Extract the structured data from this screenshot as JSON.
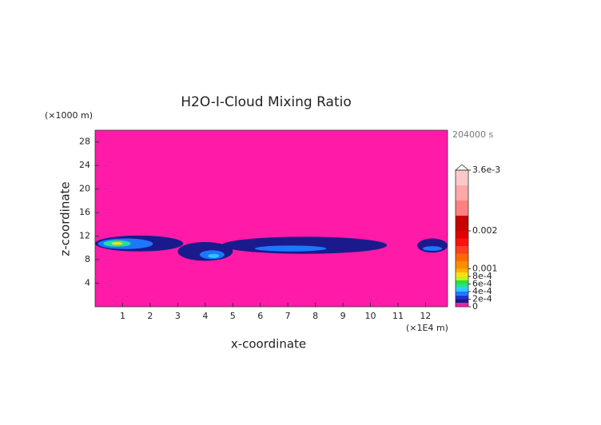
{
  "chart_data": {
    "type": "contour",
    "title": "H2O-I-Cloud Mixing Ratio",
    "time_label": "204000 s",
    "xlabel": "x-coordinate",
    "xunit": "(×1E4 m)",
    "ylabel": "z-coordinate",
    "yunit": "(×1000 m)",
    "xlim": [
      0,
      12.8
    ],
    "xticks": [
      1,
      2,
      3,
      4,
      5,
      6,
      7,
      8,
      9,
      10,
      11,
      12
    ],
    "ylim": [
      0,
      30
    ],
    "yticks": [
      4,
      8,
      12,
      16,
      20,
      24,
      28
    ],
    "background_color": "#ff1aa8",
    "colorbar": {
      "levels": [
        0,
        0.0001,
        0.0002,
        0.0003,
        0.0004,
        0.0005,
        0.0006,
        0.0007,
        0.0008,
        0.0009,
        0.001,
        0.0012,
        0.0014,
        0.0016,
        0.0018,
        0.002,
        0.0024,
        0.0028,
        0.0032,
        0.0036
      ],
      "colors": [
        "#ff1aa8",
        "#1a1a8c",
        "#2030d8",
        "#1c78ff",
        "#28c8ff",
        "#20e0a0",
        "#30e030",
        "#c8f020",
        "#ffe010",
        "#ffb000",
        "#ff8c00",
        "#ff6a00",
        "#ff4020",
        "#ff1010",
        "#e00000",
        "#c80000",
        "#ff8080",
        "#ffa8a8",
        "#ffc8c8"
      ],
      "ticks": [
        0,
        {
          "value": 0.0002,
          "label": "2e-4"
        },
        {
          "value": 0.0004,
          "label": "4e-4"
        },
        {
          "value": 0.0006,
          "label": "6e-4"
        },
        {
          "value": 0.0008,
          "label": "8e-4"
        },
        0.001,
        0.002,
        {
          "value": 0.0036,
          "label": "3.6e-3"
        }
      ]
    },
    "regions": [
      {
        "x": [
          0,
          3.2
        ],
        "z": [
          9.4,
          12.1
        ],
        "value": 0.0001
      },
      {
        "x": [
          0.1,
          2.1
        ],
        "z": [
          9.8,
          11.6
        ],
        "value": 0.0003
      },
      {
        "x": [
          0.3,
          1.3
        ],
        "z": [
          10.2,
          11.3
        ],
        "value": 0.0005
      },
      {
        "x": [
          0.6,
          1.0
        ],
        "z": [
          10.5,
          11.0
        ],
        "value": 0.0008
      },
      {
        "x": [
          3.0,
          5.0
        ],
        "z": [
          7.8,
          11.0
        ],
        "value": 0.0001
      },
      {
        "x": [
          3.8,
          4.7
        ],
        "z": [
          8.1,
          9.6
        ],
        "value": 0.0003
      },
      {
        "x": [
          4.1,
          4.5
        ],
        "z": [
          8.3,
          9.0
        ],
        "value": 0.0004
      },
      {
        "x": [
          4.6,
          10.6
        ],
        "z": [
          9.0,
          11.9
        ],
        "value": 0.0001
      },
      {
        "x": [
          5.8,
          8.4
        ],
        "z": [
          9.4,
          10.4
        ],
        "value": 0.0003
      },
      {
        "x": [
          11.7,
          12.8
        ],
        "z": [
          9.2,
          11.6
        ],
        "value": 0.0001
      },
      {
        "x": [
          11.9,
          12.6
        ],
        "z": [
          9.5,
          10.3
        ],
        "value": 0.0003
      }
    ]
  }
}
